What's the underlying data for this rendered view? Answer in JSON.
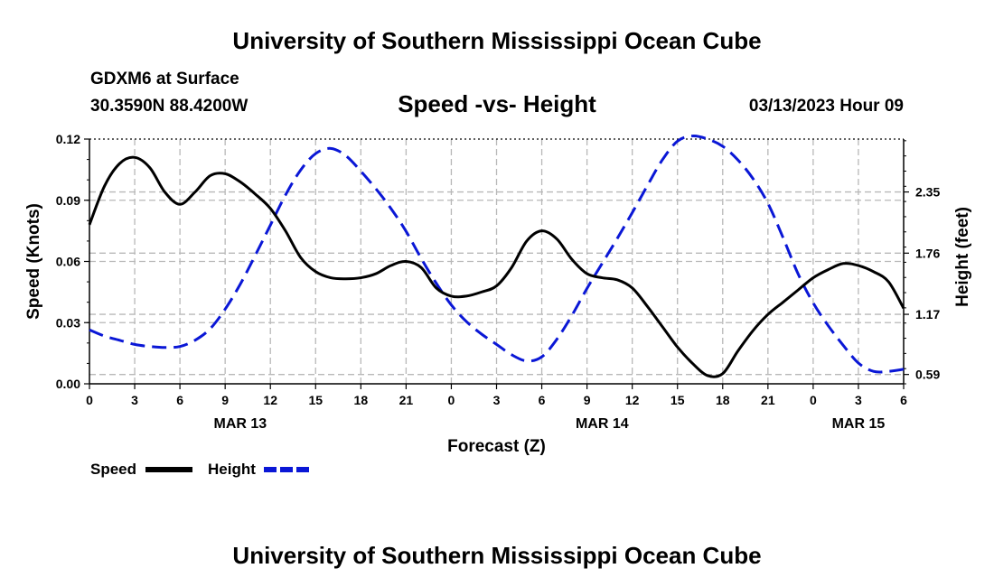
{
  "header": {
    "title": "University of Southern Mississippi Ocean Cube",
    "station": "GDXM6 at Surface",
    "coords": "30.3590N  88.4200W",
    "subtitle": "Speed -vs- Height",
    "date": "03/13/2023 Hour 09"
  },
  "footer": {
    "title": "University of Southern Mississippi Ocean Cube"
  },
  "chart_data": {
    "type": "line",
    "title": "Speed -vs- Height",
    "xlabel": "Forecast (Z)",
    "ylabel": "Speed (Knots)",
    "y2label": "Height (feet)",
    "x_tick_labels": [
      "0",
      "3",
      "6",
      "9",
      "12",
      "15",
      "18",
      "21",
      "0",
      "3",
      "6",
      "9",
      "12",
      "15",
      "18",
      "21",
      "0",
      "3",
      "6"
    ],
    "x_hours": [
      0,
      54
    ],
    "date_labels": [
      {
        "label": "MAR 13",
        "hour": 10
      },
      {
        "label": "MAR 14",
        "hour": 34
      },
      {
        "label": "MAR 15",
        "hour": 51
      }
    ],
    "y_ticks": [
      "0.00",
      "0.03",
      "0.06",
      "0.09",
      "0.12"
    ],
    "ylim": [
      0,
      0.12
    ],
    "y2_ticks": [
      "0.59",
      "1.17",
      "1.76",
      "2.35"
    ],
    "y2lim": [
      0.5,
      2.86
    ],
    "colors": {
      "speed": "#000000",
      "height": "#0a17d6"
    },
    "legend": {
      "speed_label": "Speed",
      "height_label": "Height",
      "position": "bottom-left"
    },
    "series": [
      {
        "name": "Speed",
        "x": [
          0,
          1,
          2,
          3,
          4,
          5,
          6,
          7,
          8,
          9,
          10,
          11,
          12,
          13,
          14,
          15,
          16,
          17,
          18,
          19,
          20,
          21,
          22,
          23,
          24,
          25,
          26,
          27,
          28,
          29,
          30,
          31,
          32,
          33,
          34,
          35,
          36,
          37,
          38,
          39,
          40,
          41,
          42,
          43,
          44,
          45,
          46,
          47,
          48,
          49,
          50,
          51,
          52,
          53,
          54
        ],
        "values": [
          0.078,
          0.097,
          0.108,
          0.111,
          0.106,
          0.094,
          0.088,
          0.094,
          0.102,
          0.103,
          0.099,
          0.093,
          0.086,
          0.075,
          0.062,
          0.055,
          0.052,
          0.0515,
          0.052,
          0.054,
          0.058,
          0.06,
          0.057,
          0.047,
          0.043,
          0.043,
          0.045,
          0.048,
          0.057,
          0.07,
          0.075,
          0.071,
          0.061,
          0.054,
          0.052,
          0.051,
          0.047,
          0.038,
          0.028,
          0.018,
          0.01,
          0.004,
          0.005,
          0.016,
          0.026,
          0.034,
          0.04,
          0.046,
          0.052,
          0.056,
          0.059,
          0.058,
          0.055,
          0.05,
          0.037
        ]
      },
      {
        "name": "Height",
        "x": [
          0,
          1,
          2,
          3,
          4,
          5,
          6,
          7,
          8,
          9,
          10,
          11,
          12,
          13,
          14,
          15,
          16,
          17,
          18,
          19,
          20,
          21,
          22,
          23,
          24,
          25,
          26,
          27,
          28,
          29,
          30,
          31,
          32,
          33,
          34,
          35,
          36,
          37,
          38,
          39,
          40,
          41,
          42,
          43,
          44,
          45,
          46,
          47,
          48,
          49,
          50,
          51,
          52,
          53,
          54
        ],
        "values": [
          1.02,
          0.96,
          0.92,
          0.88,
          0.86,
          0.85,
          0.86,
          0.92,
          1.03,
          1.22,
          1.46,
          1.74,
          2.03,
          2.32,
          2.56,
          2.72,
          2.77,
          2.7,
          2.55,
          2.38,
          2.19,
          1.97,
          1.71,
          1.47,
          1.26,
          1.1,
          0.98,
          0.88,
          0.78,
          0.72,
          0.76,
          0.93,
          1.16,
          1.42,
          1.66,
          1.9,
          2.15,
          2.41,
          2.66,
          2.84,
          2.89,
          2.86,
          2.79,
          2.66,
          2.48,
          2.24,
          1.91,
          1.56,
          1.28,
          1.06,
          0.87,
          0.7,
          0.62,
          0.62,
          0.64
        ]
      }
    ]
  }
}
